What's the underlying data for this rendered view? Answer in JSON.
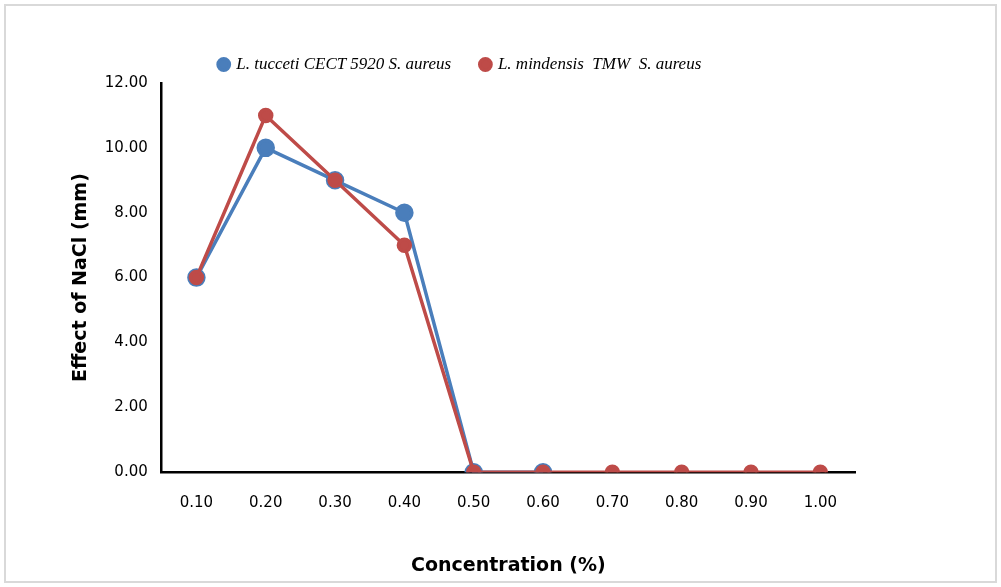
{
  "chart_data": {
    "type": "line",
    "xlabel": "Concentration (%)",
    "ylabel": "Effect of NaCl (mm)",
    "categories": [
      "0.10",
      "0.20",
      "0.30",
      "0.40",
      "0.50",
      "0.60",
      "0.70",
      "0.80",
      "0.90",
      "1.00"
    ],
    "series": [
      {
        "name": "L. tucceti CECT 5920 S. aureus",
        "color": "#4a7ebb",
        "values": [
          6,
          10,
          9,
          8,
          0,
          0,
          null,
          null,
          null,
          null
        ]
      },
      {
        "name": "L. mindensis  TMW  S. aureus",
        "color": "#be4b48",
        "values": [
          6,
          11,
          9,
          7,
          0,
          0,
          0,
          0,
          0,
          0
        ]
      }
    ],
    "ylim": [
      0,
      12
    ],
    "yticks": [
      {
        "value": 0,
        "label": "0.00"
      },
      {
        "value": 2,
        "label": "2.00"
      },
      {
        "value": 4,
        "label": "4.00"
      },
      {
        "value": 6,
        "label": "6.00"
      },
      {
        "value": 8,
        "label": "8.00"
      },
      {
        "value": 10,
        "label": "10.00"
      },
      {
        "value": 12,
        "label": "12.00"
      }
    ],
    "legend": "top",
    "marker": "circle",
    "grid": false
  }
}
